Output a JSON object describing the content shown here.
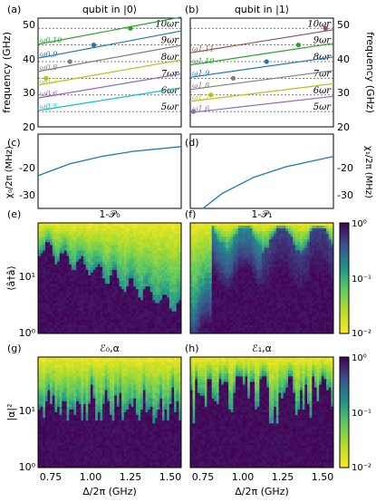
{
  "panel_labels": {
    "a": "(a)",
    "b": "(b)",
    "c": "(c)",
    "d": "(d)",
    "e": "(e)",
    "f": "(f)",
    "g": "(g)",
    "h": "(h)"
  },
  "titles": {
    "a": "qubit in |0⟩",
    "b": "qubit in |1⟩",
    "e": "1-𝒫₀",
    "f": "1-𝒫₁",
    "g": "ℰ₀,α",
    "h": "ℰ₁,α"
  },
  "axis_labels": {
    "freq": "frequency (GHz)",
    "chi0": "χ₀/2π (MHz)",
    "chi1": "χ₁/2π (MHz)",
    "photon": "⟨â†â⟩",
    "alpha": "|α|²",
    "delta": "Δ/2π (GHz)"
  },
  "ticks": {
    "freq": [
      "20",
      "30",
      "40",
      "50"
    ],
    "chi0": [
      "-20",
      "-30"
    ],
    "chi1": [
      "-20",
      "-30"
    ],
    "log_y": [
      "10⁰",
      "10¹"
    ],
    "delta": [
      "0.75",
      "1.00",
      "1.25",
      "1.50"
    ],
    "cbar": [
      "10⁰",
      "10⁻¹",
      "10⁻²"
    ]
  },
  "harmonic_labels": [
    "5ωr",
    "6ωr",
    "7ωr",
    "8ωr",
    "9ωr",
    "10ωr"
  ],
  "colors": {
    "cmap": [
      "#440154",
      "#3b528b",
      "#21918c",
      "#5ec962",
      "#b5de2b",
      "#fde725"
    ],
    "accent": "#1f77b4"
  },
  "chart_data": [
    {
      "panel": "a",
      "type": "line",
      "title": "qubit in |0⟩",
      "ylabel": "frequency (GHz)",
      "ylim": [
        20,
        52
      ],
      "xlim": [
        0.7,
        1.6
      ],
      "hlines": [
        24.5,
        29.4,
        34.3,
        39.2,
        44.1,
        49.0
      ],
      "hline_labels": [
        "5ωr",
        "6ωr",
        "7ωr",
        "8ωr",
        "9ωr",
        "10ωr"
      ],
      "series": [
        {
          "name": "ω0,5",
          "color": "#17becf",
          "values": [
            [
              0.7,
              24.8
            ],
            [
              1.6,
              31.5
            ]
          ]
        },
        {
          "name": "ω0,6",
          "color": "#9467bd",
          "values": [
            [
              0.7,
              28.5
            ],
            [
              1.6,
              35.6
            ]
          ]
        },
        {
          "name": "ω0,7",
          "color": "#bcbd22",
          "values": [
            [
              0.7,
              32.3
            ],
            [
              1.6,
              39.7
            ]
          ]
        },
        {
          "name": "ω0,8",
          "color": "#7f7f7f",
          "values": [
            [
              0.7,
              36.3
            ],
            [
              1.6,
              44.0
            ]
          ]
        },
        {
          "name": "ω0,9",
          "color": "#1f77b4",
          "values": [
            [
              0.7,
              40.2
            ],
            [
              1.6,
              48.2
            ]
          ]
        },
        {
          "name": "ω0,10",
          "color": "#2ca02c",
          "values": [
            [
              0.7,
              44.3
            ],
            [
              1.6,
              52.3
            ]
          ]
        }
      ],
      "markers": [
        [
          0.75,
          34.3
        ],
        [
          0.9,
          39.2
        ],
        [
          1.05,
          44.1
        ],
        [
          1.28,
          49.0
        ]
      ]
    },
    {
      "panel": "b",
      "type": "line",
      "title": "qubit in |1⟩",
      "ylabel": "frequency (GHz)",
      "ylim": [
        20,
        52
      ],
      "xlim": [
        0.7,
        1.6
      ],
      "hlines": [
        24.5,
        29.4,
        34.3,
        39.2,
        44.1,
        49.0
      ],
      "hline_labels": [
        "5ωr",
        "6ωr",
        "7ωr",
        "8ωr",
        "9ωr",
        "10ωr"
      ],
      "series": [
        {
          "name": "ω1,6",
          "color": "#9467bd",
          "values": [
            [
              0.7,
              24.2
            ],
            [
              1.6,
              29.0
            ]
          ]
        },
        {
          "name": "ω1,7",
          "color": "#bcbd22",
          "values": [
            [
              0.7,
              27.5
            ],
            [
              1.6,
              32.7
            ]
          ]
        },
        {
          "name": "ω1,8",
          "color": "#7f7f7f",
          "values": [
            [
              0.7,
              31.0
            ],
            [
              1.6,
              36.6
            ]
          ]
        },
        {
          "name": "ω1,9",
          "color": "#1f77b4",
          "values": [
            [
              0.7,
              34.6
            ],
            [
              1.6,
              40.6
            ]
          ]
        },
        {
          "name": "ω1,10",
          "color": "#2ca02c",
          "values": [
            [
              0.7,
              38.2
            ],
            [
              1.6,
              44.6
            ]
          ]
        },
        {
          "name": "ω1,11",
          "color": "#8c564b",
          "values": [
            [
              0.7,
              41.8
            ],
            [
              1.6,
              48.6
            ]
          ]
        }
      ],
      "markers": [
        [
          0.72,
          24.5
        ],
        [
          0.83,
          29.4
        ],
        [
          0.97,
          34.3
        ],
        [
          1.18,
          39.2
        ],
        [
          1.38,
          44.1
        ],
        [
          1.55,
          49.0
        ]
      ]
    },
    {
      "panel": "c",
      "type": "line",
      "ylabel": "χ₀/2π (MHz)",
      "ylim": [
        -35,
        -10
      ],
      "xlim": [
        0.7,
        1.6
      ],
      "series": [
        {
          "values": [
            [
              0.7,
              -24
            ],
            [
              0.9,
              -20
            ],
            [
              1.1,
              -17.5
            ],
            [
              1.3,
              -15.8
            ],
            [
              1.6,
              -14.2
            ]
          ]
        }
      ]
    },
    {
      "panel": "d",
      "type": "line",
      "ylabel": "χ₁/2π (MHz)",
      "ylim": [
        -35,
        -10
      ],
      "xlim": [
        0.7,
        1.6
      ],
      "series": [
        {
          "values": [
            [
              0.78,
              -36
            ],
            [
              0.9,
              -30
            ],
            [
              1.1,
              -24.5
            ],
            [
              1.3,
              -21
            ],
            [
              1.6,
              -17.5
            ]
          ]
        }
      ]
    },
    {
      "panel": "e",
      "type": "heatmap",
      "title": "1-𝒫₀",
      "xlabel": "",
      "ylabel": "⟨â†â⟩",
      "ylim": [
        1,
        60
      ],
      "xlim": [
        0.7,
        1.6
      ],
      "zlim": [
        0.01,
        1
      ]
    },
    {
      "panel": "f",
      "type": "heatmap",
      "title": "1-𝒫₁",
      "ylim": [
        1,
        60
      ],
      "xlim": [
        0.7,
        1.6
      ],
      "zlim": [
        0.01,
        1
      ]
    },
    {
      "panel": "g",
      "type": "heatmap",
      "title": "ℰ₀,α",
      "xlabel": "Δ/2π (GHz)",
      "ylabel": "|α|²",
      "ylim": [
        1,
        60
      ],
      "xlim": [
        0.7,
        1.6
      ],
      "zlim": [
        0.01,
        1
      ]
    },
    {
      "panel": "h",
      "type": "heatmap",
      "title": "ℰ₁,α",
      "xlabel": "Δ/2π (GHz)",
      "ylim": [
        1,
        60
      ],
      "xlim": [
        0.7,
        1.6
      ],
      "zlim": [
        0.01,
        1
      ]
    }
  ]
}
